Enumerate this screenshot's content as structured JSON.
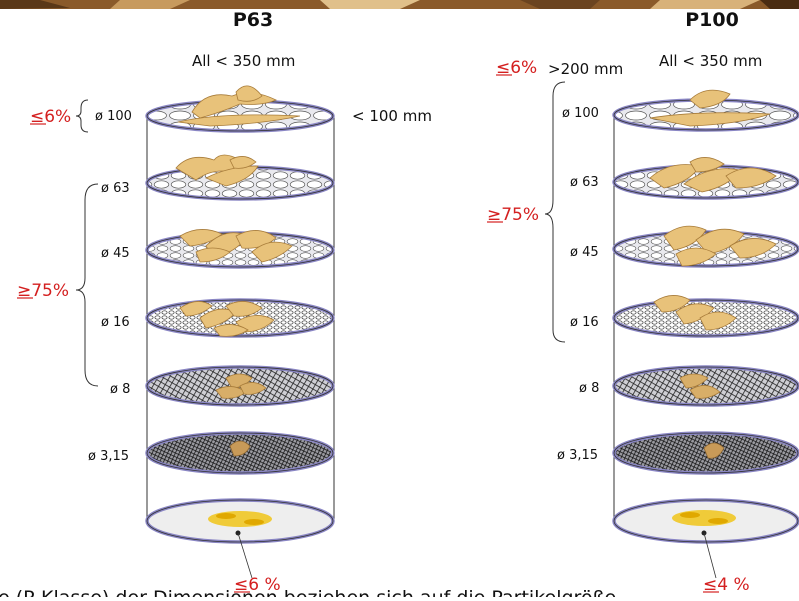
{
  "colors": {
    "accent_red": "#d42020",
    "sieve_rim": "#8a86c4",
    "wood": "#e8c27a",
    "wood_edge": "#a87c3a",
    "fines": "#f0c419",
    "header_band": "#7a4e24"
  },
  "left": {
    "title": "P63",
    "subtitle": "All < 350 mm",
    "right_note": "< 100 mm",
    "top_bracket_label": "≤6%",
    "middle_bracket_label": "≥75%",
    "bottom_label": "≤6 %",
    "sieves": [
      "ø 100",
      "ø 63",
      "ø 45",
      "ø 16",
      "ø 8",
      "ø 3,15"
    ]
  },
  "right": {
    "title": "P100",
    "subtitle": "All < 350 mm",
    "top_label": "≤6%",
    "top_note": ">200 mm",
    "middle_bracket_label": "≥75%",
    "bottom_label": "≤4 %",
    "sieves": [
      "ø 100",
      "ø 63",
      "ø 45",
      "ø 16",
      "ø 8",
      "ø 3,15"
    ]
  },
  "caption": "e (P-Klasse) der Dimensionen beziehen sich auf die Partikelgröße"
}
